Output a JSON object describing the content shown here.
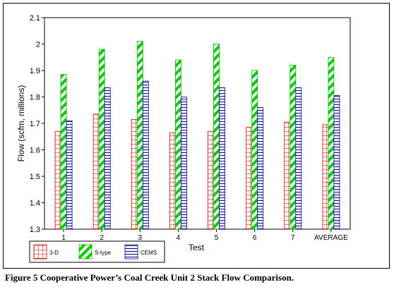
{
  "chart_data": {
    "type": "bar",
    "categories": [
      "1",
      "2",
      "3",
      "4",
      "5",
      "6",
      "7",
      "AVERAGE"
    ],
    "series": [
      {
        "name": "3-D",
        "values": [
          1.67,
          1.735,
          1.715,
          1.665,
          1.67,
          1.685,
          1.705,
          1.695
        ],
        "color": "#cc0000",
        "pattern": "grid"
      },
      {
        "name": "S-type",
        "values": [
          1.885,
          1.98,
          2.01,
          1.94,
          2.0,
          1.9,
          1.92,
          1.95
        ],
        "color": "#00cc00",
        "pattern": "diagonal-stripes"
      },
      {
        "name": "CEMS",
        "values": [
          1.71,
          1.835,
          1.86,
          1.8,
          1.835,
          1.76,
          1.835,
          1.805
        ],
        "color": "#000099",
        "pattern": "horizontal-lines"
      }
    ],
    "xlabel": "Test",
    "ylabel": "Flow (scfm, millions)",
    "ylim": [
      1.3,
      2.1
    ],
    "yticks": [
      "1.3",
      "1.4",
      "1.5",
      "1.6",
      "1.7",
      "1.8",
      "1.9",
      "2",
      "2.1"
    ],
    "grid": false,
    "legend_position": "bottom-left"
  },
  "caption": "Figure 5  Cooperative Power’s Coal Creek Unit 2 Stack Flow Comparison."
}
